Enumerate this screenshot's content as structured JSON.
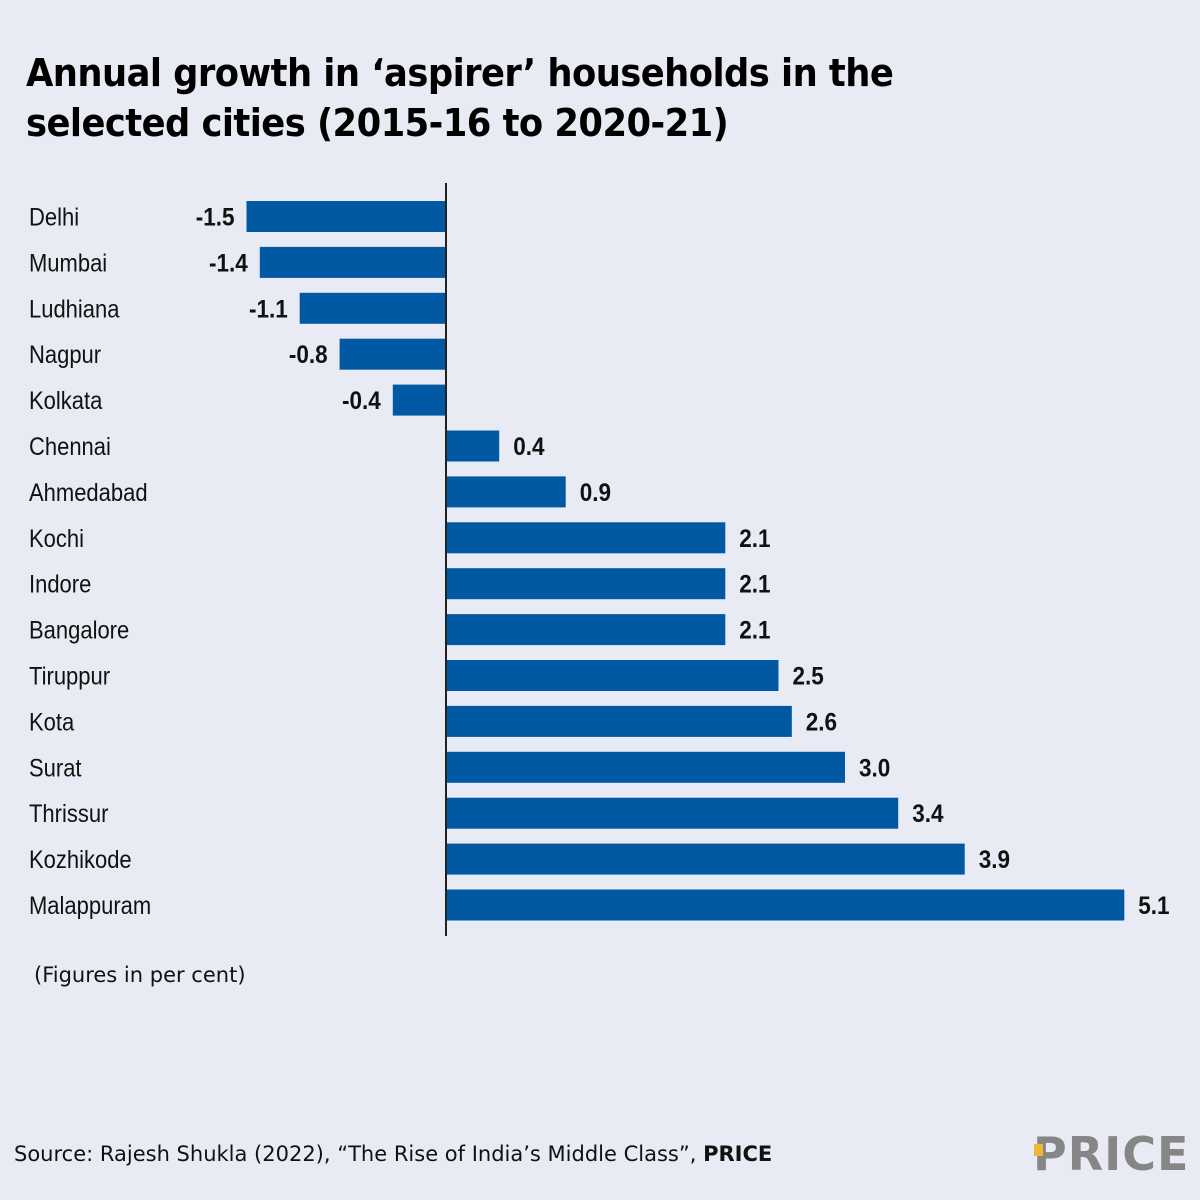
{
  "title": "Annual growth in ‘aspirer’ households in the selected cities (2015-16 to 2020-21)",
  "note": "(Figures in per cent)",
  "source": {
    "prefix": "Source: Rajesh Shukla (2022), “The Rise of India’s Middle Class”, ",
    "bold": "PRICE"
  },
  "logo": {
    "text": "PRICE",
    "text_color": "#868686",
    "accent_color": "#f2b634"
  },
  "colors": {
    "bar": "#0059a2",
    "background": "#e8ebf3",
    "axis": "#222222"
  },
  "chart_data": {
    "type": "bar",
    "orientation": "horizontal",
    "title": "Annual growth in ‘aspirer’ households in the selected cities (2015-16 to 2020-21)",
    "xlabel": "",
    "ylabel": "",
    "unit_note": "(Figures in per cent)",
    "grid": false,
    "legend": "none",
    "xlim": [
      -1.5,
      5.1
    ],
    "categories": [
      "Delhi",
      "Mumbai",
      "Ludhiana",
      "Nagpur",
      "Kolkata",
      "Chennai",
      "Ahmedabad",
      "Kochi",
      "Indore",
      "Bangalore",
      "Tiruppur",
      "Kota",
      "Surat",
      "Thrissur",
      "Kozhikode",
      "Malappuram"
    ],
    "values": [
      -1.5,
      -1.4,
      -1.1,
      -0.8,
      -0.4,
      0.4,
      0.9,
      2.1,
      2.1,
      2.1,
      2.5,
      2.6,
      3.0,
      3.4,
      3.9,
      5.1
    ],
    "labels": [
      "-1.5",
      "-1.4",
      "-1.1",
      "-0.8",
      "-0.4",
      "0.4",
      "0.9",
      "2.1",
      "2.1",
      "2.1",
      "2.5",
      "2.6",
      "3.0",
      "3.4",
      "3.9",
      "5.1"
    ]
  }
}
